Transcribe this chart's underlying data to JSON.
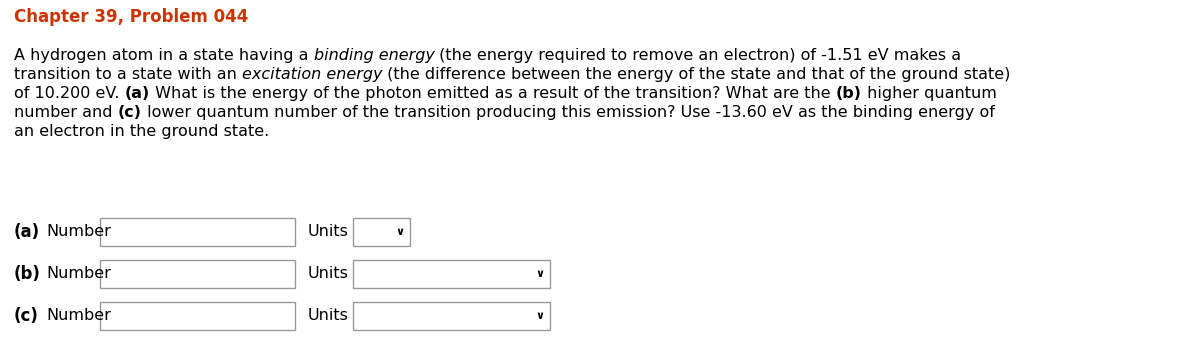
{
  "title": "Chapter 39, Problem 044",
  "title_color": "#cc3300",
  "title_fontsize": 12,
  "body_fontsize": 11.5,
  "background_color": "#ffffff",
  "text_color": "#000000",
  "box_edge_color": "#999999",
  "box_color": "#ffffff",
  "lines": [
    [
      [
        "A hydrogen atom in a state having a ",
        "normal"
      ],
      [
        "binding energy",
        "italic"
      ],
      [
        " (the energy required to remove an electron) of -1.51 eV makes a",
        "normal"
      ]
    ],
    [
      [
        "transition to a state with an ",
        "normal"
      ],
      [
        "excitation energy",
        "italic"
      ],
      [
        " (the difference between the energy of the state and that of the ground state)",
        "normal"
      ]
    ],
    [
      [
        "of 10.200 eV. ",
        "normal"
      ],
      [
        "(a)",
        "bold"
      ],
      [
        " What is the energy of the photon emitted as a result of the transition? What are the ",
        "normal"
      ],
      [
        "(b)",
        "bold"
      ],
      [
        " higher quantum",
        "normal"
      ]
    ],
    [
      [
        "number and ",
        "normal"
      ],
      [
        "(c)",
        "bold"
      ],
      [
        " lower quantum number of the transition producing this emission? Use -13.60 eV as the binding energy of",
        "normal"
      ]
    ],
    [
      [
        "an electron in the ground state.",
        "normal"
      ]
    ]
  ],
  "input_rows": [
    {
      "label": "(a)",
      "units_dropdown_small": true
    },
    {
      "label": "(b)",
      "units_dropdown_small": false
    },
    {
      "label": "(c)",
      "units_dropdown_small": false
    }
  ]
}
